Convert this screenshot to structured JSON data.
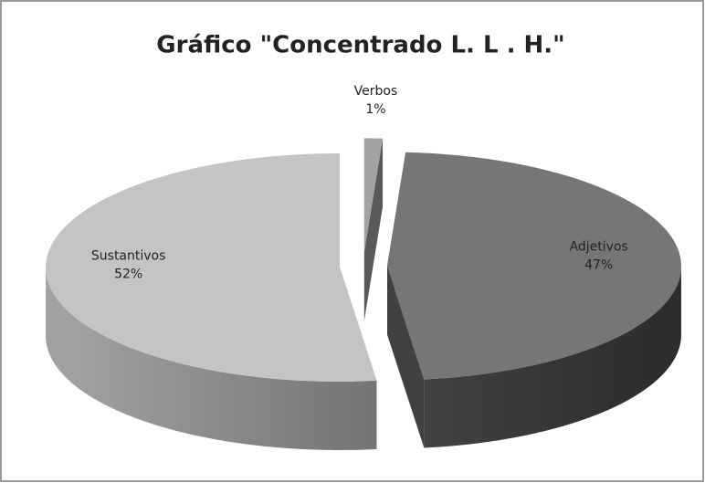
{
  "chart_data": {
    "type": "pie3d",
    "title": "Gráfico \"Concentrado L. L . H.\"",
    "categories": [
      "Verbos",
      "Adjetivos",
      "Sustantivos"
    ],
    "values": [
      1,
      47,
      52
    ],
    "value_labels": [
      "1%",
      "47%",
      "52%"
    ],
    "colors": [
      "#a2a2a2",
      "#767676",
      "#c4c4c4"
    ]
  }
}
